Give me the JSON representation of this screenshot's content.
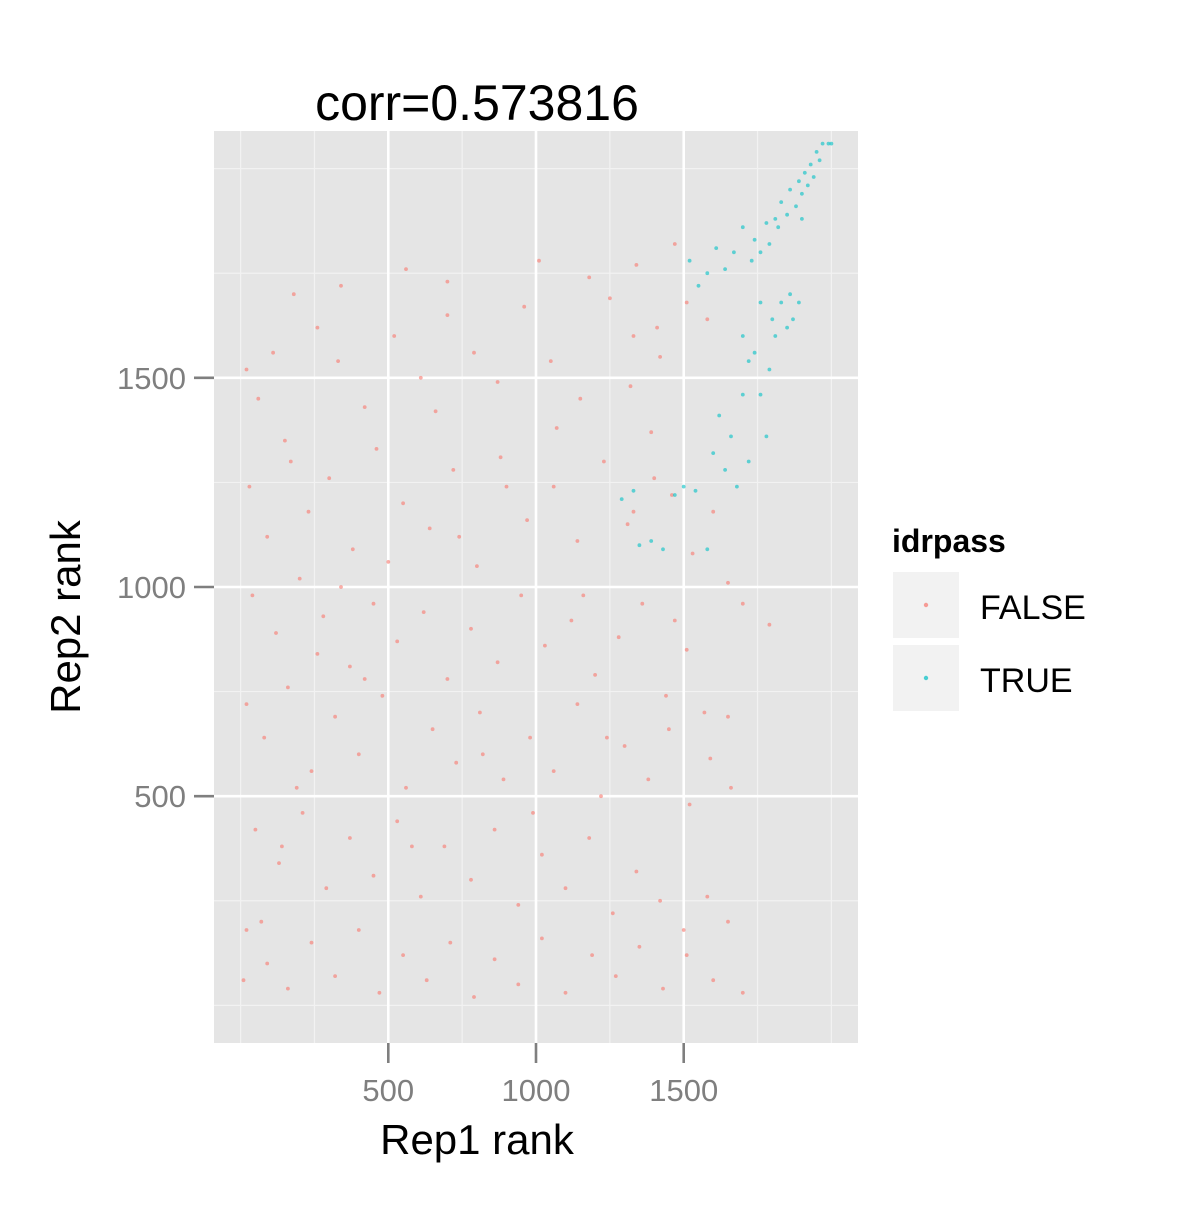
{
  "chart_data": {
    "type": "scatter",
    "title": "corr=0.573816",
    "xlabel": "Rep1 rank",
    "ylabel": "Rep2 rank",
    "xlim": [
      -90,
      2090
    ],
    "ylim": [
      -90,
      2090
    ],
    "x_ticks": [
      500,
      1000,
      1500
    ],
    "y_ticks": [
      500,
      1000,
      1500
    ],
    "grid": true,
    "legend": {
      "title": "idrpass",
      "position": "right",
      "entries": [
        {
          "label": "FALSE",
          "color": "#F8766D"
        },
        {
          "label": "TRUE",
          "color": "#00BFC4"
        }
      ]
    },
    "series": [
      {
        "name": "FALSE",
        "color": "#F8766D",
        "points": [
          [
            20,
            1520
          ],
          [
            60,
            1450
          ],
          [
            110,
            1560
          ],
          [
            170,
            1300
          ],
          [
            260,
            1620
          ],
          [
            330,
            1540
          ],
          [
            420,
            1430
          ],
          [
            520,
            1600
          ],
          [
            610,
            1500
          ],
          [
            700,
            1650
          ],
          [
            790,
            1560
          ],
          [
            870,
            1490
          ],
          [
            960,
            1670
          ],
          [
            1050,
            1540
          ],
          [
            1150,
            1450
          ],
          [
            1250,
            1690
          ],
          [
            1330,
            1600
          ],
          [
            1420,
            1550
          ],
          [
            1510,
            1680
          ],
          [
            1580,
            1640
          ],
          [
            30,
            1240
          ],
          [
            90,
            1120
          ],
          [
            150,
            1350
          ],
          [
            230,
            1180
          ],
          [
            300,
            1260
          ],
          [
            380,
            1090
          ],
          [
            460,
            1330
          ],
          [
            550,
            1200
          ],
          [
            640,
            1140
          ],
          [
            720,
            1280
          ],
          [
            800,
            1050
          ],
          [
            880,
            1310
          ],
          [
            970,
            1160
          ],
          [
            1060,
            1240
          ],
          [
            1140,
            1110
          ],
          [
            1230,
            1300
          ],
          [
            1310,
            1150
          ],
          [
            1390,
            1370
          ],
          [
            1460,
            1220
          ],
          [
            1530,
            1080
          ],
          [
            1600,
            1180
          ],
          [
            1650,
            1010
          ],
          [
            1700,
            960
          ],
          [
            1790,
            910
          ],
          [
            40,
            980
          ],
          [
            120,
            890
          ],
          [
            200,
            1020
          ],
          [
            280,
            930
          ],
          [
            370,
            810
          ],
          [
            450,
            960
          ],
          [
            530,
            870
          ],
          [
            620,
            940
          ],
          [
            700,
            780
          ],
          [
            780,
            900
          ],
          [
            870,
            820
          ],
          [
            950,
            980
          ],
          [
            1030,
            860
          ],
          [
            1120,
            920
          ],
          [
            1200,
            790
          ],
          [
            1280,
            880
          ],
          [
            1360,
            960
          ],
          [
            1440,
            740
          ],
          [
            1510,
            850
          ],
          [
            1570,
            700
          ],
          [
            1650,
            690
          ],
          [
            20,
            720
          ],
          [
            80,
            640
          ],
          [
            160,
            760
          ],
          [
            240,
            560
          ],
          [
            320,
            690
          ],
          [
            400,
            600
          ],
          [
            480,
            740
          ],
          [
            560,
            520
          ],
          [
            650,
            660
          ],
          [
            730,
            580
          ],
          [
            810,
            700
          ],
          [
            890,
            540
          ],
          [
            980,
            640
          ],
          [
            1060,
            560
          ],
          [
            1140,
            720
          ],
          [
            1220,
            500
          ],
          [
            1300,
            620
          ],
          [
            1380,
            540
          ],
          [
            1450,
            660
          ],
          [
            1520,
            480
          ],
          [
            1590,
            590
          ],
          [
            1660,
            520
          ],
          [
            50,
            420
          ],
          [
            130,
            340
          ],
          [
            210,
            460
          ],
          [
            290,
            280
          ],
          [
            370,
            400
          ],
          [
            450,
            310
          ],
          [
            530,
            440
          ],
          [
            610,
            260
          ],
          [
            690,
            380
          ],
          [
            780,
            300
          ],
          [
            860,
            420
          ],
          [
            940,
            240
          ],
          [
            1020,
            360
          ],
          [
            1100,
            280
          ],
          [
            1180,
            400
          ],
          [
            1260,
            220
          ],
          [
            1340,
            320
          ],
          [
            1420,
            250
          ],
          [
            1500,
            180
          ],
          [
            1580,
            260
          ],
          [
            1650,
            200
          ],
          [
            20,
            180
          ],
          [
            90,
            100
          ],
          [
            160,
            40
          ],
          [
            240,
            150
          ],
          [
            320,
            70
          ],
          [
            400,
            180
          ],
          [
            470,
            30
          ],
          [
            550,
            120
          ],
          [
            630,
            60
          ],
          [
            710,
            150
          ],
          [
            790,
            20
          ],
          [
            860,
            110
          ],
          [
            940,
            50
          ],
          [
            1020,
            160
          ],
          [
            1100,
            30
          ],
          [
            1190,
            120
          ],
          [
            1270,
            70
          ],
          [
            1350,
            140
          ],
          [
            1430,
            40
          ],
          [
            1510,
            120
          ],
          [
            1600,
            60
          ],
          [
            1700,
            30
          ],
          [
            10,
            60
          ],
          [
            70,
            200
          ],
          [
            140,
            380
          ],
          [
            190,
            520
          ],
          [
            260,
            840
          ],
          [
            340,
            1000
          ],
          [
            420,
            780
          ],
          [
            500,
            1060
          ],
          [
            580,
            380
          ],
          [
            660,
            1420
          ],
          [
            740,
            1120
          ],
          [
            820,
            600
          ],
          [
            900,
            1240
          ],
          [
            990,
            460
          ],
          [
            1070,
            1380
          ],
          [
            1160,
            980
          ],
          [
            1240,
            640
          ],
          [
            1320,
            1480
          ],
          [
            1400,
            1260
          ],
          [
            1470,
            920
          ],
          [
            180,
            1700
          ],
          [
            340,
            1720
          ],
          [
            560,
            1760
          ],
          [
            700,
            1730
          ],
          [
            1010,
            1780
          ],
          [
            1180,
            1740
          ],
          [
            1340,
            1770
          ],
          [
            1470,
            1820
          ],
          [
            1410,
            1620
          ],
          [
            1330,
            1180
          ]
        ]
      },
      {
        "name": "TRUE",
        "color": "#00BFC4",
        "points": [
          [
            1290,
            1210
          ],
          [
            1330,
            1230
          ],
          [
            1350,
            1100
          ],
          [
            1390,
            1110
          ],
          [
            1430,
            1090
          ],
          [
            1470,
            1220
          ],
          [
            1500,
            1240
          ],
          [
            1540,
            1230
          ],
          [
            1580,
            1090
          ],
          [
            1600,
            1320
          ],
          [
            1620,
            1410
          ],
          [
            1640,
            1280
          ],
          [
            1660,
            1360
          ],
          [
            1680,
            1240
          ],
          [
            1700,
            1460
          ],
          [
            1700,
            1600
          ],
          [
            1720,
            1540
          ],
          [
            1720,
            1300
          ],
          [
            1740,
            1560
          ],
          [
            1760,
            1460
          ],
          [
            1760,
            1680
          ],
          [
            1780,
            1360
          ],
          [
            1790,
            1520
          ],
          [
            1800,
            1640
          ],
          [
            1810,
            1600
          ],
          [
            1830,
            1680
          ],
          [
            1850,
            1620
          ],
          [
            1860,
            1700
          ],
          [
            1870,
            1640
          ],
          [
            1890,
            1680
          ],
          [
            1520,
            1780
          ],
          [
            1550,
            1720
          ],
          [
            1580,
            1750
          ],
          [
            1610,
            1810
          ],
          [
            1640,
            1760
          ],
          [
            1670,
            1800
          ],
          [
            1700,
            1860
          ],
          [
            1730,
            1780
          ],
          [
            1740,
            1830
          ],
          [
            1760,
            1800
          ],
          [
            1780,
            1870
          ],
          [
            1790,
            1820
          ],
          [
            1810,
            1880
          ],
          [
            1820,
            1860
          ],
          [
            1830,
            1920
          ],
          [
            1850,
            1890
          ],
          [
            1860,
            1950
          ],
          [
            1880,
            1910
          ],
          [
            1890,
            1970
          ],
          [
            1900,
            1940
          ],
          [
            1910,
            1990
          ],
          [
            1920,
            1960
          ],
          [
            1930,
            2010
          ],
          [
            1940,
            1980
          ],
          [
            1950,
            2040
          ],
          [
            1960,
            2020
          ],
          [
            1970,
            2060
          ],
          [
            1990,
            2060
          ],
          [
            2000,
            2060
          ],
          [
            1900,
            1880
          ]
        ]
      }
    ]
  }
}
